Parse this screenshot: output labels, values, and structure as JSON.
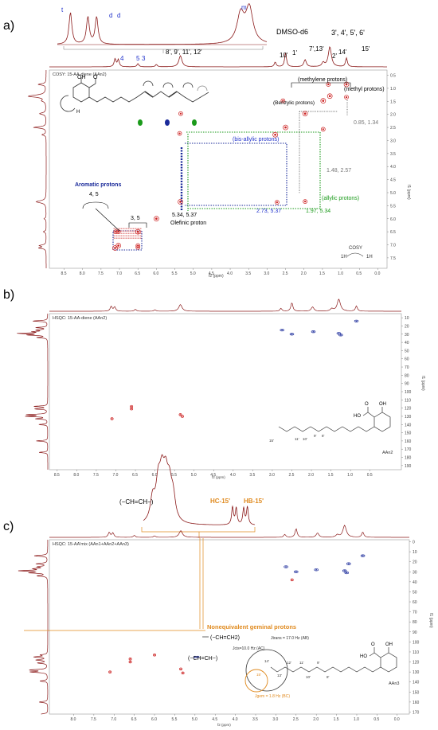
{
  "panels": {
    "a": "a)",
    "b": "b)",
    "c": "c)"
  },
  "colors": {
    "spectrum": "#8b1a1a",
    "cross_red": "#cc2222",
    "cross_blue": "#1a2a9a",
    "blue_label": "#2233cc",
    "green_label": "#1a9a1a",
    "gray_label": "#777777",
    "orange": "#e08a1e",
    "frame": "#999999"
  },
  "chart_data": [
    {
      "type": "scatter",
      "name_text": "COSY: 15-AA-diene (AAn2)",
      "xlabel": "f2 (ppm)",
      "ylabel": "f1 (ppm)",
      "xlim": [
        8.9,
        -0.25
      ],
      "ylim": [
        0.3,
        7.9
      ],
      "x_ticks": [
        "8.5",
        "8.0",
        "7.5",
        "7.0",
        "6.5",
        "6.0",
        "5.5",
        "5.0",
        "4.5",
        "4.0",
        "3.5",
        "3.0",
        "2.5",
        "2.0",
        "1.5",
        "1.0",
        "0.5",
        "0.0"
      ],
      "y_ticks": [
        "0.5",
        "1.0",
        "1.5",
        "2.0",
        "2.5",
        "3.0",
        "3.5",
        "4.0",
        "4.5",
        "5.0",
        "5.5",
        "6.0",
        "6.5",
        "7.0",
        "7.5"
      ],
      "top_peak_labels": [
        {
          "text": "t",
          "x": 7.33
        },
        {
          "text": "d",
          "x": 7.17
        },
        {
          "text": "d",
          "x": 7.03
        },
        {
          "text": "m",
          "x": 5.35
        }
      ],
      "proton_labels": [
        {
          "text": "4",
          "x": 7.1
        },
        {
          "text": "5",
          "x": 6.55
        },
        {
          "text": "3",
          "x": 6.45
        },
        {
          "text": "8', 9', 11', 12'",
          "x": 5.3
        },
        {
          "text": "10'",
          "x": 2.78
        },
        {
          "text": "1'",
          "x": 2.55
        },
        {
          "text": "DMSO-d6",
          "x": 2.5
        },
        {
          "text": "7',13'",
          "x": 1.97
        },
        {
          "text": "2'",
          "x": 1.45
        },
        {
          "text": "14'",
          "x": 1.3
        },
        {
          "text": "3', 4', 5', 6'",
          "x": 1.3
        },
        {
          "text": "15'",
          "x": 0.85
        }
      ],
      "diagonal_peaks": [
        [
          7.12,
          7.12
        ],
        [
          7.03,
          7.03
        ],
        [
          6.5,
          6.5
        ],
        [
          6.0,
          6.0
        ],
        [
          5.35,
          5.35
        ],
        [
          2.78,
          2.78
        ],
        [
          2.5,
          2.5
        ],
        [
          1.97,
          1.97
        ],
        [
          1.48,
          1.48
        ],
        [
          1.3,
          1.3
        ],
        [
          0.85,
          0.85
        ]
      ],
      "cross_peaks": [
        [
          2.73,
          5.37
        ],
        [
          5.37,
          2.73
        ],
        [
          1.97,
          5.34
        ],
        [
          5.34,
          1.97
        ],
        [
          1.48,
          2.57
        ],
        [
          2.57,
          1.48
        ],
        [
          0.85,
          1.34
        ],
        [
          1.34,
          0.85
        ],
        [
          7.1,
          6.5
        ],
        [
          6.5,
          7.1
        ],
        [
          7.03,
          6.5
        ],
        [
          6.5,
          7.03
        ]
      ],
      "annotations": {
        "methylene": "(methylene protons)",
        "methyl": "(methyl protons)",
        "benzylic": "(Benzylic protons)",
        "bis_allylic": "(bis-allylic protons)",
        "allylic": "(allylic protons)",
        "aromatic": "Aromatic protons",
        "aromatic_45": "4, 5",
        "aromatic_35": "3, 5",
        "olefinic_val": "5.34, 5.37",
        "olefinic": "Olefinic proton",
        "v_273": "2.73, 5.37",
        "v_197": "1.97, 5.34",
        "v_148": "1.48, 2.57",
        "v_085": "0.85, 1.34",
        "cosy_icon": "COSY",
        "h1": "1H",
        "h2": "1H",
        "mol_oh": "OH",
        "mol_o": "O",
        "mol_h": "H"
      }
    },
    {
      "type": "scatter",
      "name_text": "HSQC: 15-AA-diene (AAn2)",
      "xlabel": "f2 (ppm)",
      "ylabel": "f1 (ppm)",
      "xlim": [
        8.7,
        -0.3
      ],
      "ylim": [
        5,
        195
      ],
      "x_ticks": [
        "8.5",
        "8.0",
        "7.5",
        "7.0",
        "6.5",
        "6.0",
        "5.5",
        "5.0",
        "4.5",
        "4.0",
        "3.5",
        "3.0",
        "2.5",
        "2.0",
        "1.5",
        "1.0",
        "0.5"
      ],
      "y_ticks": [
        "10",
        "20",
        "30",
        "40",
        "50",
        "60",
        "70",
        "80",
        "90",
        "100",
        "110",
        "120",
        "130",
        "140",
        "150",
        "160",
        "170",
        "180",
        "190"
      ],
      "peaks_red": [
        [
          7.1,
          133
        ],
        [
          6.6,
          118
        ],
        [
          6.6,
          121
        ],
        [
          5.35,
          128
        ],
        [
          5.3,
          130
        ]
      ],
      "peaks_blue": [
        [
          2.75,
          25
        ],
        [
          2.5,
          30
        ],
        [
          1.95,
          27
        ],
        [
          1.3,
          29
        ],
        [
          1.25,
          31
        ],
        [
          0.85,
          14
        ]
      ],
      "mol_label": "AAn2",
      "mol_ho": "HO",
      "mol_oh": "OH",
      "mol_o": "O",
      "chain_labels": [
        "15'",
        "11'",
        "10'",
        "9'",
        "8'"
      ]
    },
    {
      "type": "scatter",
      "name_text": "HSQC: 15-AA'mix (AAn1+AAn2+AAn3)",
      "xlabel": "f2 (ppm)",
      "ylabel": "f1 (ppm)",
      "xlim": [
        8.6,
        -0.3
      ],
      "ylim": [
        -2,
        172
      ],
      "x_ticks": [
        "8.0",
        "7.5",
        "7.0",
        "6.5",
        "6.0",
        "5.5",
        "5.0",
        "4.5",
        "4.0",
        "3.5",
        "3.0",
        "2.5",
        "2.0",
        "1.5",
        "1.0",
        "0.5",
        "0.0"
      ],
      "y_ticks": [
        "0",
        "10",
        "20",
        "30",
        "40",
        "50",
        "60",
        "70",
        "80",
        "90",
        "100",
        "110",
        "120",
        "130",
        "140",
        "150",
        "160",
        "170"
      ],
      "peaks_red": [
        [
          7.1,
          130
        ],
        [
          6.6,
          117
        ],
        [
          6.6,
          120
        ],
        [
          6.0,
          113
        ],
        [
          5.35,
          127
        ],
        [
          5.3,
          131
        ],
        [
          2.6,
          38
        ]
      ],
      "peaks_blue": [
        [
          2.75,
          25
        ],
        [
          2.5,
          30
        ],
        [
          2.0,
          28
        ],
        [
          1.3,
          29
        ],
        [
          1.25,
          31
        ],
        [
          1.2,
          22
        ],
        [
          0.85,
          14
        ]
      ],
      "peaks_orange": [
        [
          5.0,
          115
        ],
        [
          4.93,
          115
        ]
      ],
      "inset_title": "(−CH=CH−)",
      "inset_hc": "HC-15'",
      "inset_hb": "HB-15'",
      "geminal": "Nonequivalent geminal protons",
      "ch2_label": "(−CH=CH2)",
      "chch_label": "(−CH=CH−)",
      "jtrans": "Jtrans = 17.0 Hz (AB)",
      "jcis": "Jcis=10.0 Hz (AC)",
      "jgem": "Jgem = 1.8 Hz (BC)",
      "mol_label": "AAn3",
      "mol_ho": "HO",
      "mol_oh": "OH",
      "mol_o": "O",
      "chain_labels": [
        "15'",
        "14'",
        "13'",
        "12'",
        "11'",
        "10'",
        "9'",
        "8'"
      ]
    }
  ]
}
